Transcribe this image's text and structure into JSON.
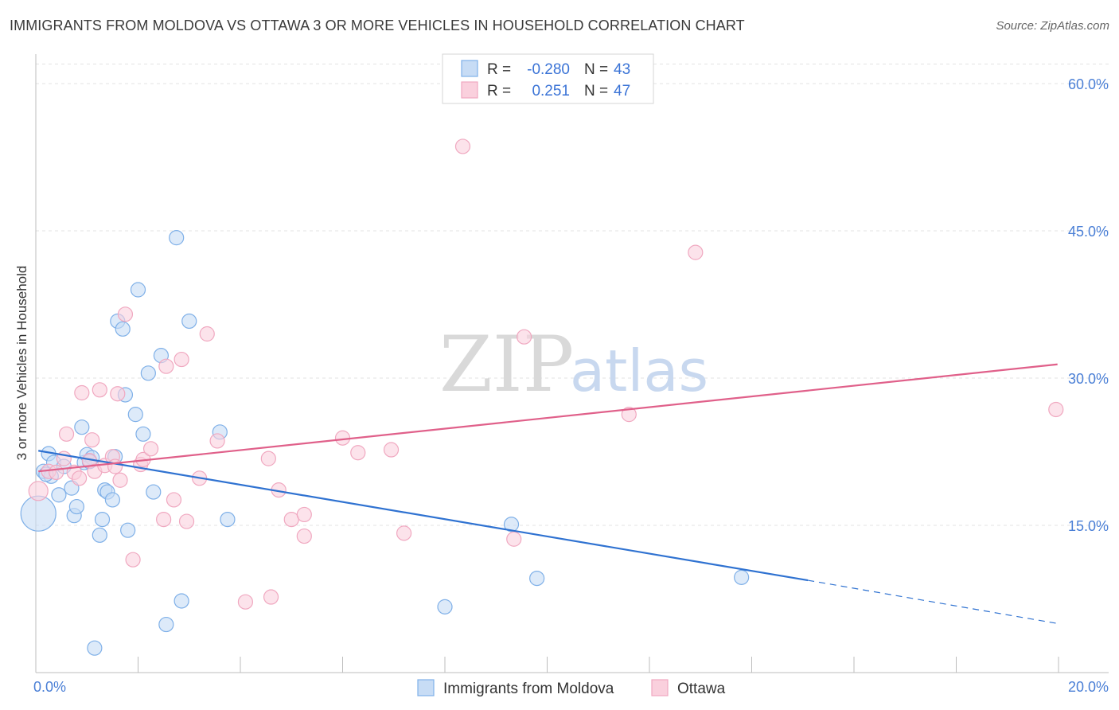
{
  "header": {
    "title": "IMMIGRANTS FROM MOLDOVA VS OTTAWA 3 OR MORE VEHICLES IN HOUSEHOLD CORRELATION CHART",
    "source": "Source: ZipAtlas.com"
  },
  "watermark": {
    "zip": "ZIP",
    "atlas": "atlas"
  },
  "legend_box": {
    "rows": [
      {
        "r_label": "R =",
        "r_value": "-0.280",
        "n_label": "N =",
        "n_value": "43"
      },
      {
        "r_label": "R =",
        "r_value": "0.251",
        "n_label": "N =",
        "n_value": "47"
      }
    ]
  },
  "chart_data": {
    "type": "scatter",
    "title": "IMMIGRANTS FROM MOLDOVA VS OTTAWA 3 OR MORE VEHICLES IN HOUSEHOLD CORRELATION CHART",
    "xlabel": "",
    "ylabel": "3 or more Vehicles in Household",
    "xlim": [
      0,
      20
    ],
    "ylim": [
      0,
      63
    ],
    "y_ticks": [
      15,
      30,
      45,
      60
    ],
    "y_tick_labels": [
      "15.0%",
      "30.0%",
      "45.0%",
      "60.0%"
    ],
    "x_tick_labels": [
      "0.0%",
      "20.0%"
    ],
    "grid": true,
    "legend_position": "bottom",
    "series": [
      {
        "name": "Immigrants from Moldova",
        "color": "#7fb0e8",
        "fill": "#c7dcf5",
        "line_color": "#2f72d1",
        "trend": {
          "x_start": 0.05,
          "y_start": 22.6,
          "x_solid_end": 15.1,
          "y_solid_end": 9.4,
          "x_end": 19.98,
          "y_end": 5.0
        },
        "points": [
          [
            0.05,
            16.2,
            22
          ],
          [
            0.15,
            20.5,
            9
          ],
          [
            0.25,
            22.3,
            9
          ],
          [
            0.3,
            20.0,
            9
          ],
          [
            0.35,
            21.4,
            9
          ],
          [
            0.45,
            18.1,
            9
          ],
          [
            0.55,
            21.0,
            9
          ],
          [
            0.7,
            18.8,
            9
          ],
          [
            0.75,
            16.0,
            9
          ],
          [
            0.8,
            16.9,
            9
          ],
          [
            0.9,
            25.0,
            9
          ],
          [
            0.95,
            21.4,
            9
          ],
          [
            1.0,
            22.2,
            9
          ],
          [
            1.1,
            21.9,
            9
          ],
          [
            1.15,
            2.5,
            9
          ],
          [
            1.25,
            14.0,
            9
          ],
          [
            1.3,
            15.6,
            9
          ],
          [
            1.35,
            18.6,
            9
          ],
          [
            1.4,
            18.4,
            9
          ],
          [
            1.5,
            17.6,
            9
          ],
          [
            1.55,
            22.0,
            9
          ],
          [
            1.6,
            35.8,
            9
          ],
          [
            1.7,
            35.0,
            9
          ],
          [
            1.75,
            28.3,
            9
          ],
          [
            1.8,
            14.5,
            9
          ],
          [
            1.95,
            26.3,
            9
          ],
          [
            2.0,
            39.0,
            9
          ],
          [
            2.1,
            24.3,
            9
          ],
          [
            2.2,
            30.5,
            9
          ],
          [
            2.3,
            18.4,
            9
          ],
          [
            2.45,
            32.3,
            9
          ],
          [
            2.55,
            4.9,
            9
          ],
          [
            2.75,
            44.3,
            9
          ],
          [
            2.85,
            7.3,
            9
          ],
          [
            3.0,
            35.8,
            9
          ],
          [
            3.6,
            24.5,
            9
          ],
          [
            3.75,
            15.6,
            9
          ],
          [
            8.0,
            6.7,
            9
          ],
          [
            9.3,
            15.1,
            9
          ],
          [
            9.8,
            9.6,
            9
          ],
          [
            13.8,
            9.7,
            9
          ],
          [
            0.2,
            20.2,
            9
          ],
          [
            1.05,
            21.5,
            9
          ]
        ]
      },
      {
        "name": "Ottawa",
        "color": "#f0a8c0",
        "fill": "#fad0dd",
        "line_color": "#e0608a",
        "trend": {
          "x_start": 0.05,
          "y_start": 20.5,
          "x_end": 19.98,
          "y_end": 31.4
        },
        "points": [
          [
            0.05,
            18.5,
            12
          ],
          [
            0.25,
            20.5,
            9
          ],
          [
            0.4,
            20.4,
            9
          ],
          [
            0.55,
            21.8,
            9
          ],
          [
            0.6,
            24.3,
            9
          ],
          [
            0.75,
            20.4,
            9
          ],
          [
            0.85,
            19.8,
            9
          ],
          [
            0.9,
            28.5,
            9
          ],
          [
            1.05,
            21.6,
            9
          ],
          [
            1.1,
            23.7,
            9
          ],
          [
            1.15,
            20.5,
            9
          ],
          [
            1.25,
            28.8,
            9
          ],
          [
            1.35,
            21.1,
            9
          ],
          [
            1.5,
            22.0,
            9
          ],
          [
            1.6,
            28.4,
            9
          ],
          [
            1.65,
            19.6,
            9
          ],
          [
            1.75,
            36.5,
            9
          ],
          [
            1.9,
            11.5,
            9
          ],
          [
            2.05,
            21.2,
            9
          ],
          [
            2.1,
            21.7,
            9
          ],
          [
            2.25,
            22.8,
            9
          ],
          [
            2.5,
            15.6,
            9
          ],
          [
            2.55,
            31.2,
            9
          ],
          [
            2.7,
            17.6,
            9
          ],
          [
            2.85,
            31.9,
            9
          ],
          [
            2.95,
            15.4,
            9
          ],
          [
            3.2,
            19.8,
            9
          ],
          [
            3.35,
            34.5,
            9
          ],
          [
            3.55,
            23.6,
            9
          ],
          [
            4.1,
            7.2,
            9
          ],
          [
            4.55,
            21.8,
            9
          ],
          [
            4.6,
            7.7,
            9
          ],
          [
            4.75,
            18.6,
            9
          ],
          [
            5.0,
            15.6,
            9
          ],
          [
            5.25,
            16.1,
            9
          ],
          [
            5.25,
            13.9,
            9
          ],
          [
            6.0,
            23.9,
            9
          ],
          [
            6.3,
            22.4,
            9
          ],
          [
            6.95,
            22.7,
            9
          ],
          [
            7.2,
            14.2,
            9
          ],
          [
            8.35,
            53.6,
            9
          ],
          [
            9.35,
            13.6,
            9
          ],
          [
            9.55,
            34.2,
            9
          ],
          [
            11.6,
            26.3,
            9
          ],
          [
            12.9,
            42.8,
            9
          ],
          [
            19.95,
            26.8,
            9
          ],
          [
            1.55,
            21.0,
            9
          ]
        ]
      }
    ]
  }
}
